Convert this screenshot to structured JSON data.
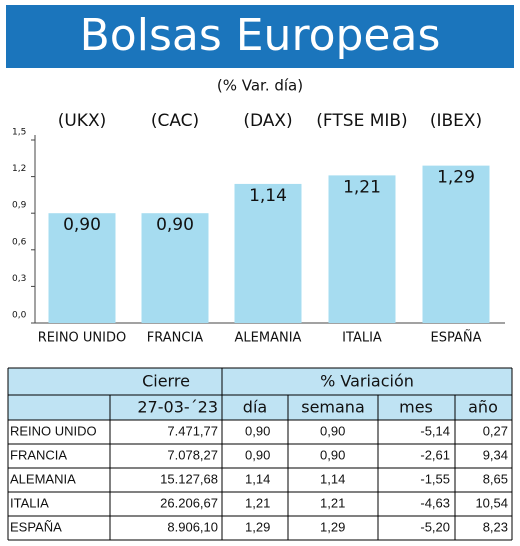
{
  "chart_data": {
    "type": "bar",
    "title": "Bolsas Europeas",
    "subtitle": "(% Var. día)",
    "annotations": [
      "(UKX)",
      "(CAC)",
      "(DAX)",
      "(FTSE MIB)",
      "(IBEX)"
    ],
    "categories": [
      "REINO UNIDO",
      "FRANCIA",
      "ALEMANIA",
      "ITALIA",
      "ESPAÑA"
    ],
    "values": [
      0.9,
      0.9,
      1.14,
      1.21,
      1.29
    ],
    "value_labels": [
      "0,90",
      "0,90",
      "1,14",
      "1,21",
      "1,29"
    ],
    "color": "#a6dcf0",
    "ylim": [
      0,
      1.5
    ],
    "yticks": [
      {
        "value": 0,
        "label": "0,0"
      },
      {
        "value": 0.3,
        "label": "0,3"
      },
      {
        "value": 0.6,
        "label": "0,6"
      },
      {
        "value": 0.9,
        "label": "0,9"
      },
      {
        "value": 1.2,
        "label": "1,2"
      },
      {
        "value": 1.5,
        "label": "1,5"
      }
    ]
  },
  "table": {
    "group_headers": [
      "Cierre",
      "% Variación"
    ],
    "date": "27-03-´23",
    "columns": [
      "día",
      "semana",
      "mes",
      "año"
    ],
    "rows": [
      [
        "REINO UNIDO",
        "7.471,77",
        "0,90",
        "0,90",
        "-5,14",
        "0,27"
      ],
      [
        "FRANCIA",
        "7.078,27",
        "0,90",
        "0,90",
        "-2,61",
        "9,34"
      ],
      [
        "ALEMANIA",
        "15.127,68",
        "1,14",
        "1,14",
        "-1,55",
        "8,65"
      ],
      [
        "ITALIA",
        "26.206,67",
        "1,21",
        "1,21",
        "-4,63",
        "10,54"
      ],
      [
        "ESPAÑA",
        "8.906,10",
        "1,29",
        "1,29",
        "-5,20",
        "8,23"
      ]
    ]
  }
}
